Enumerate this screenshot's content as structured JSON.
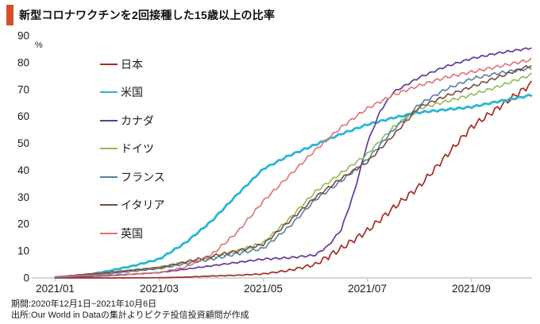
{
  "header": {
    "title": "新型コロナワクチンを2回接種した15歳以上の比率",
    "accent_color": "#d1502b"
  },
  "footer": {
    "line1": "期間:2020年12月1日~2021年10月6日",
    "line2": "出所:Our World in Dataの集計よりピクテ投信投資顧問が作成"
  },
  "y_axis": {
    "unit": "%",
    "ticks": [
      "0",
      "10",
      "20",
      "30",
      "40",
      "50",
      "60",
      "70",
      "80",
      "90"
    ]
  },
  "x_axis": {
    "ticks": [
      {
        "label": "2021/01",
        "m": 1
      },
      {
        "label": "2021/03",
        "m": 3
      },
      {
        "label": "2021/05",
        "m": 5
      },
      {
        "label": "2021/07",
        "m": 7
      },
      {
        "label": "2021/09",
        "m": 9
      }
    ]
  },
  "chart_data": {
    "type": "line",
    "title": "新型コロナワクチンを2回接種した15歳以上の比率",
    "ylabel": "%",
    "ylim": [
      0,
      90
    ],
    "grid": false,
    "legend_position": "upper-left",
    "x_unit": "months since 2020-12-01 (1 = 2021/01/01, 10.15 = 2021/10/06)",
    "axis_color": "#c9c9c9",
    "series": [
      {
        "name": "日本",
        "color": "#a42d25",
        "width": 1.7,
        "jitter": 1.2,
        "points": [
          [
            1,
            0
          ],
          [
            2,
            0
          ],
          [
            3,
            0.1
          ],
          [
            3.5,
            0.3
          ],
          [
            4,
            0.7
          ],
          [
            4.5,
            1.0
          ],
          [
            5,
            1.5
          ],
          [
            5.5,
            2.8
          ],
          [
            6,
            5
          ],
          [
            6.5,
            11
          ],
          [
            7,
            17.5
          ],
          [
            7.5,
            26
          ],
          [
            8,
            34
          ],
          [
            8.5,
            45
          ],
          [
            9,
            56
          ],
          [
            9.5,
            63
          ],
          [
            10,
            70
          ],
          [
            10.15,
            72
          ]
        ]
      },
      {
        "name": "米国",
        "color": "#2ab5d5",
        "width": 2.8,
        "jitter": 0.35,
        "points": [
          [
            1,
            0.2
          ],
          [
            1.5,
            0.8
          ],
          [
            2,
            2.5
          ],
          [
            2.5,
            4.5
          ],
          [
            3,
            7
          ],
          [
            3.5,
            13
          ],
          [
            4,
            21
          ],
          [
            4.5,
            31
          ],
          [
            5,
            40.5
          ],
          [
            5.5,
            45.5
          ],
          [
            6,
            49.5
          ],
          [
            6.5,
            53.5
          ],
          [
            7,
            57
          ],
          [
            7.5,
            59.5
          ],
          [
            8,
            61.5
          ],
          [
            8.5,
            62.5
          ],
          [
            9,
            63.5
          ],
          [
            9.5,
            65.5
          ],
          [
            10,
            67.3
          ],
          [
            10.15,
            68
          ]
        ]
      },
      {
        "name": "カナダ",
        "color": "#63399b",
        "width": 1.7,
        "jitter": 0.4,
        "points": [
          [
            1,
            0.1
          ],
          [
            2,
            0.8
          ],
          [
            3,
            2
          ],
          [
            4,
            4.5
          ],
          [
            5,
            7
          ],
          [
            5.5,
            7.5
          ],
          [
            6,
            8.5
          ],
          [
            6.25,
            12
          ],
          [
            6.5,
            18
          ],
          [
            6.75,
            32
          ],
          [
            7,
            50
          ],
          [
            7.25,
            62
          ],
          [
            7.5,
            69
          ],
          [
            8,
            74.5
          ],
          [
            8.5,
            78.5
          ],
          [
            9,
            81.5
          ],
          [
            9.5,
            83.5
          ],
          [
            10,
            85
          ],
          [
            10.15,
            85.5
          ]
        ]
      },
      {
        "name": "ドイツ",
        "color": "#8fba56",
        "width": 1.6,
        "jitter": 0.6,
        "points": [
          [
            1,
            0.4
          ],
          [
            2,
            2
          ],
          [
            3,
            4
          ],
          [
            4,
            7.5
          ],
          [
            4.5,
            10
          ],
          [
            5,
            13
          ],
          [
            5.5,
            22
          ],
          [
            6,
            32
          ],
          [
            6.5,
            39
          ],
          [
            7,
            46
          ],
          [
            7.5,
            56
          ],
          [
            8,
            63
          ],
          [
            8.5,
            65.5
          ],
          [
            9,
            68
          ],
          [
            9.5,
            71
          ],
          [
            10,
            74.5
          ],
          [
            10.15,
            75.5
          ]
        ]
      },
      {
        "name": "フランス",
        "color": "#4d82a6",
        "width": 1.6,
        "jitter": 0.6,
        "points": [
          [
            1,
            0.2
          ],
          [
            2,
            1.5
          ],
          [
            3,
            3.5
          ],
          [
            4,
            7
          ],
          [
            4.5,
            9
          ],
          [
            5,
            11
          ],
          [
            5.5,
            19
          ],
          [
            6,
            29
          ],
          [
            6.5,
            36
          ],
          [
            7,
            44
          ],
          [
            7.5,
            55
          ],
          [
            8,
            64.5
          ],
          [
            8.5,
            70
          ],
          [
            9,
            74
          ],
          [
            9.5,
            76
          ],
          [
            10,
            77.5
          ],
          [
            10.15,
            78
          ]
        ]
      },
      {
        "name": "イタリア",
        "color": "#7b4a3f",
        "width": 1.6,
        "jitter": 0.6,
        "points": [
          [
            1,
            0.4
          ],
          [
            2,
            2
          ],
          [
            3,
            3.8
          ],
          [
            4,
            8
          ],
          [
            4.5,
            10
          ],
          [
            5,
            12.5
          ],
          [
            5.5,
            21
          ],
          [
            6,
            30
          ],
          [
            6.5,
            37
          ],
          [
            7,
            43
          ],
          [
            7.5,
            53
          ],
          [
            8,
            63.5
          ],
          [
            8.5,
            67.5
          ],
          [
            9,
            71
          ],
          [
            9.5,
            74.5
          ],
          [
            10,
            78
          ],
          [
            10.15,
            79
          ]
        ]
      },
      {
        "name": "英国",
        "color": "#df7173",
        "width": 1.6,
        "jitter": 0.6,
        "points": [
          [
            1,
            0.5
          ],
          [
            1.5,
            0.8
          ],
          [
            2,
            1
          ],
          [
            2.5,
            1.5
          ],
          [
            3,
            2
          ],
          [
            3.5,
            4
          ],
          [
            4,
            8.5
          ],
          [
            4.5,
            17
          ],
          [
            5,
            28.5
          ],
          [
            5.5,
            38
          ],
          [
            6,
            47.5
          ],
          [
            6.5,
            56
          ],
          [
            7,
            63
          ],
          [
            7.5,
            68
          ],
          [
            8,
            71.5
          ],
          [
            8.5,
            74.5
          ],
          [
            9,
            76.5
          ],
          [
            9.5,
            78.5
          ],
          [
            10,
            80.5
          ],
          [
            10.15,
            81
          ]
        ]
      }
    ]
  }
}
